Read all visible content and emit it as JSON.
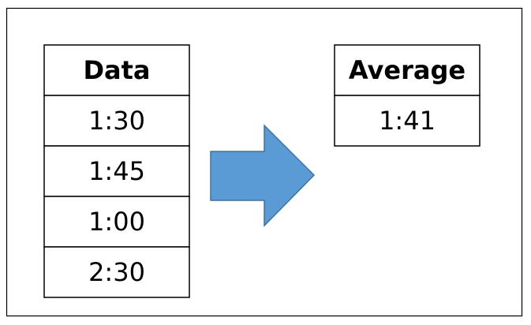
{
  "data_table": {
    "header": "Data",
    "rows": [
      "1:30",
      "1:45",
      "1:00",
      "2:30"
    ]
  },
  "average_table": {
    "header": "Average",
    "rows": [
      "1:41"
    ]
  }
}
